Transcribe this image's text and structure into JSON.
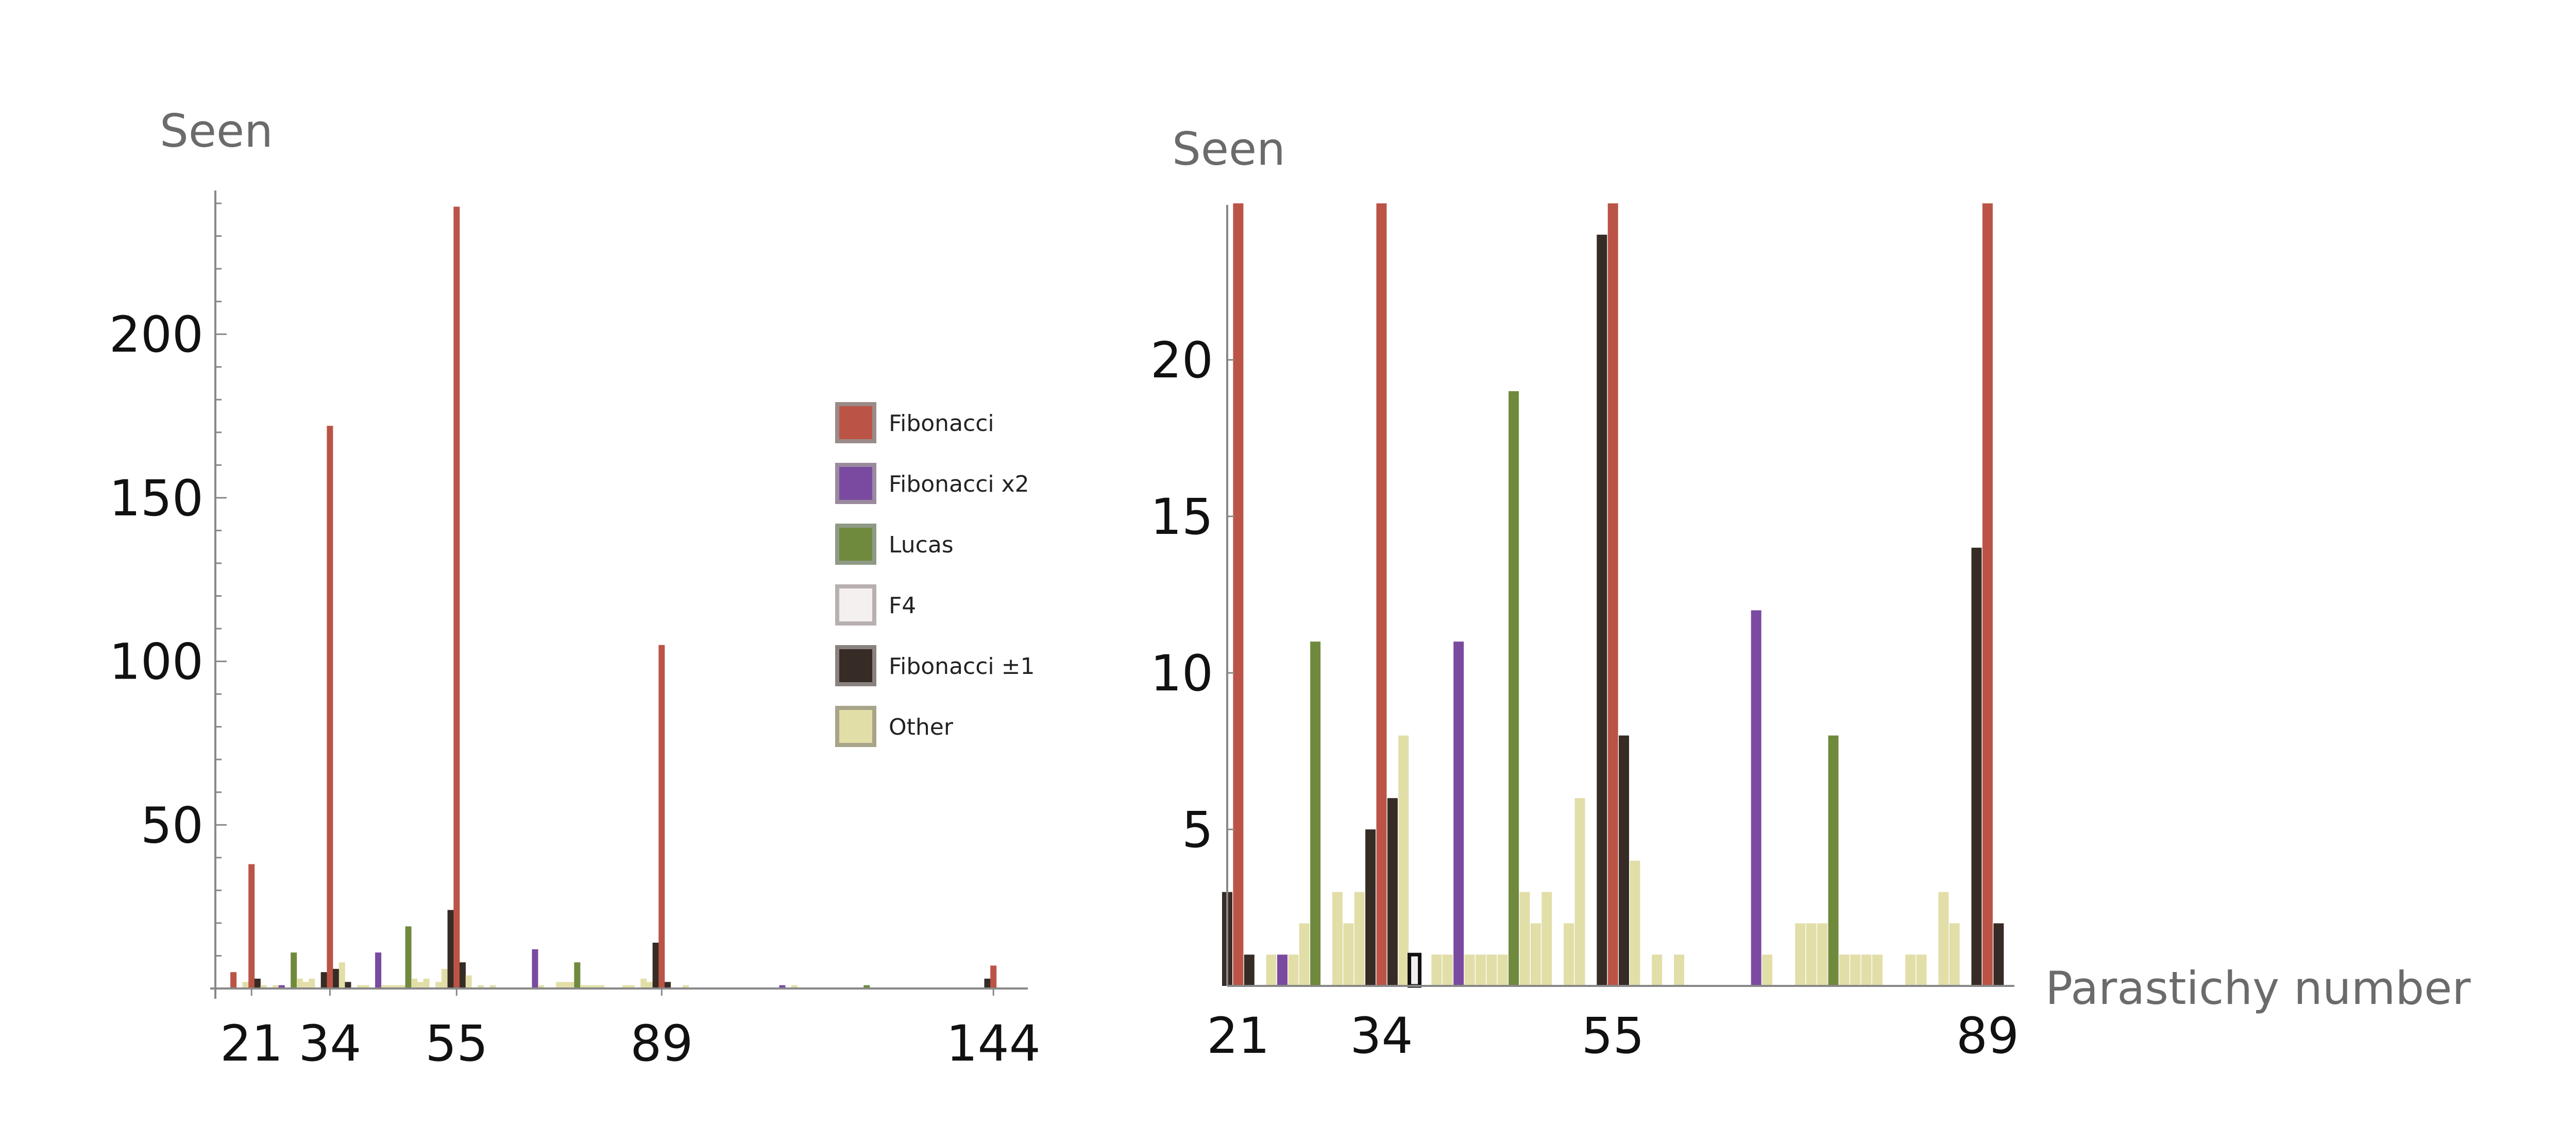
{
  "legend": [
    {
      "key": "fib",
      "label": "Fibonacci",
      "color": "#bb5446",
      "border": "#9a8a88"
    },
    {
      "key": "fib2",
      "label": "Fibonacci x2",
      "color": "#7a4aa0",
      "border": "#9a8a9e"
    },
    {
      "key": "lucas",
      "label": "Lucas",
      "color": "#6f8a3c",
      "border": "#8f9a86"
    },
    {
      "key": "f4",
      "label": "F4",
      "color": "#f4f0f0",
      "border": "#b8b0b0"
    },
    {
      "key": "fibpm1",
      "label": "Fibonacci ±1",
      "color": "#362b25",
      "border": "#8a8280"
    },
    {
      "key": "other",
      "label": "Other",
      "color": "#e2dea8",
      "border": "#a8a48a"
    }
  ],
  "chart_data": [
    {
      "type": "bar",
      "ylabel": "Seen",
      "xlabel": "",
      "xlim": [
        15,
        148
      ],
      "ylim": [
        0,
        240
      ],
      "yticks": [
        50,
        100,
        150,
        200
      ],
      "xticks": [
        21,
        34,
        55,
        89,
        144
      ],
      "bars": [
        {
          "x": 18,
          "y": 5,
          "cat": "fib"
        },
        {
          "x": 20,
          "y": 2,
          "cat": "other"
        },
        {
          "x": 21,
          "y": 38,
          "cat": "fib"
        },
        {
          "x": 22,
          "y": 3,
          "cat": "fibpm1"
        },
        {
          "x": 23,
          "y": 1,
          "cat": "other"
        },
        {
          "x": 25,
          "y": 1,
          "cat": "other"
        },
        {
          "x": 26,
          "y": 1,
          "cat": "fib2"
        },
        {
          "x": 28,
          "y": 11,
          "cat": "lucas"
        },
        {
          "x": 29,
          "y": 3,
          "cat": "other"
        },
        {
          "x": 30,
          "y": 2,
          "cat": "other"
        },
        {
          "x": 31,
          "y": 3,
          "cat": "other"
        },
        {
          "x": 33,
          "y": 5,
          "cat": "fibpm1"
        },
        {
          "x": 34,
          "y": 172,
          "cat": "fib"
        },
        {
          "x": 35,
          "y": 6,
          "cat": "fibpm1"
        },
        {
          "x": 36,
          "y": 8,
          "cat": "other"
        },
        {
          "x": 37,
          "y": 2,
          "cat": "fibpm1"
        },
        {
          "x": 39,
          "y": 1,
          "cat": "other"
        },
        {
          "x": 40,
          "y": 1,
          "cat": "other"
        },
        {
          "x": 42,
          "y": 11,
          "cat": "fib2"
        },
        {
          "x": 43,
          "y": 1,
          "cat": "other"
        },
        {
          "x": 44,
          "y": 1,
          "cat": "other"
        },
        {
          "x": 45,
          "y": 1,
          "cat": "other"
        },
        {
          "x": 46,
          "y": 1,
          "cat": "other"
        },
        {
          "x": 47,
          "y": 19,
          "cat": "lucas"
        },
        {
          "x": 48,
          "y": 3,
          "cat": "other"
        },
        {
          "x": 49,
          "y": 2,
          "cat": "other"
        },
        {
          "x": 50,
          "y": 3,
          "cat": "other"
        },
        {
          "x": 52,
          "y": 2,
          "cat": "other"
        },
        {
          "x": 53,
          "y": 6,
          "cat": "other"
        },
        {
          "x": 54,
          "y": 24,
          "cat": "fibpm1"
        },
        {
          "x": 55,
          "y": 239,
          "cat": "fib"
        },
        {
          "x": 56,
          "y": 8,
          "cat": "fibpm1"
        },
        {
          "x": 57,
          "y": 4,
          "cat": "other"
        },
        {
          "x": 59,
          "y": 1,
          "cat": "other"
        },
        {
          "x": 61,
          "y": 1,
          "cat": "other"
        },
        {
          "x": 68,
          "y": 12,
          "cat": "fib2"
        },
        {
          "x": 69,
          "y": 1,
          "cat": "other"
        },
        {
          "x": 72,
          "y": 2,
          "cat": "other"
        },
        {
          "x": 73,
          "y": 2,
          "cat": "other"
        },
        {
          "x": 74,
          "y": 2,
          "cat": "other"
        },
        {
          "x": 75,
          "y": 8,
          "cat": "lucas"
        },
        {
          "x": 76,
          "y": 1,
          "cat": "other"
        },
        {
          "x": 77,
          "y": 1,
          "cat": "other"
        },
        {
          "x": 78,
          "y": 1,
          "cat": "other"
        },
        {
          "x": 79,
          "y": 1,
          "cat": "other"
        },
        {
          "x": 83,
          "y": 1,
          "cat": "other"
        },
        {
          "x": 84,
          "y": 1,
          "cat": "other"
        },
        {
          "x": 86,
          "y": 3,
          "cat": "other"
        },
        {
          "x": 87,
          "y": 2,
          "cat": "other"
        },
        {
          "x": 88,
          "y": 14,
          "cat": "fibpm1"
        },
        {
          "x": 89,
          "y": 105,
          "cat": "fib"
        },
        {
          "x": 90,
          "y": 2,
          "cat": "fibpm1"
        },
        {
          "x": 93,
          "y": 1,
          "cat": "other"
        },
        {
          "x": 109,
          "y": 1,
          "cat": "fib2"
        },
        {
          "x": 111,
          "y": 1,
          "cat": "other"
        },
        {
          "x": 123,
          "y": 1,
          "cat": "lucas"
        },
        {
          "x": 143,
          "y": 3,
          "cat": "fibpm1"
        },
        {
          "x": 144,
          "y": 7,
          "cat": "fib"
        }
      ]
    },
    {
      "type": "bar",
      "ylabel": "Seen",
      "xlabel": "Parastichy number",
      "xlim": [
        20,
        90.5
      ],
      "ylim": [
        0,
        25
      ],
      "yticks": [
        5,
        10,
        15,
        20
      ],
      "xticks": [
        21,
        34,
        55,
        89
      ],
      "bars": [
        {
          "x": 20,
          "y": 3,
          "cat": "fibpm1"
        },
        {
          "x": 21,
          "y": 25,
          "cat": "fib"
        },
        {
          "x": 22,
          "y": 1,
          "cat": "fibpm1"
        },
        {
          "x": 24,
          "y": 1,
          "cat": "other"
        },
        {
          "x": 25,
          "y": 1,
          "cat": "fib2"
        },
        {
          "x": 26,
          "y": 1,
          "cat": "other"
        },
        {
          "x": 27,
          "y": 2,
          "cat": "other"
        },
        {
          "x": 28,
          "y": 11,
          "cat": "lucas"
        },
        {
          "x": 30,
          "y": 3,
          "cat": "other"
        },
        {
          "x": 31,
          "y": 2,
          "cat": "other"
        },
        {
          "x": 32,
          "y": 3,
          "cat": "other"
        },
        {
          "x": 33,
          "y": 5,
          "cat": "fibpm1"
        },
        {
          "x": 34,
          "y": 25,
          "cat": "fib"
        },
        {
          "x": 35,
          "y": 6,
          "cat": "fibpm1"
        },
        {
          "x": 36,
          "y": 8,
          "cat": "other"
        },
        {
          "x": 37,
          "y": 1,
          "cat": "f4"
        },
        {
          "x": 39,
          "y": 1,
          "cat": "other"
        },
        {
          "x": 40,
          "y": 1,
          "cat": "other"
        },
        {
          "x": 41,
          "y": 11,
          "cat": "fib2"
        },
        {
          "x": 42,
          "y": 1,
          "cat": "other"
        },
        {
          "x": 43,
          "y": 1,
          "cat": "other"
        },
        {
          "x": 44,
          "y": 1,
          "cat": "other"
        },
        {
          "x": 45,
          "y": 1,
          "cat": "other"
        },
        {
          "x": 46,
          "y": 19,
          "cat": "lucas"
        },
        {
          "x": 47,
          "y": 3,
          "cat": "other"
        },
        {
          "x": 48,
          "y": 2,
          "cat": "other"
        },
        {
          "x": 49,
          "y": 3,
          "cat": "other"
        },
        {
          "x": 51,
          "y": 2,
          "cat": "other"
        },
        {
          "x": 52,
          "y": 6,
          "cat": "other"
        },
        {
          "x": 54,
          "y": 24,
          "cat": "fibpm1"
        },
        {
          "x": 55,
          "y": 25,
          "cat": "fib"
        },
        {
          "x": 56,
          "y": 8,
          "cat": "fibpm1"
        },
        {
          "x": 57,
          "y": 4,
          "cat": "other"
        },
        {
          "x": 59,
          "y": 1,
          "cat": "other"
        },
        {
          "x": 61,
          "y": 1,
          "cat": "other"
        },
        {
          "x": 68,
          "y": 12,
          "cat": "fib2"
        },
        {
          "x": 69,
          "y": 1,
          "cat": "other"
        },
        {
          "x": 72,
          "y": 2,
          "cat": "other"
        },
        {
          "x": 73,
          "y": 2,
          "cat": "other"
        },
        {
          "x": 74,
          "y": 2,
          "cat": "other"
        },
        {
          "x": 75,
          "y": 8,
          "cat": "lucas"
        },
        {
          "x": 76,
          "y": 1,
          "cat": "other"
        },
        {
          "x": 77,
          "y": 1,
          "cat": "other"
        },
        {
          "x": 78,
          "y": 1,
          "cat": "other"
        },
        {
          "x": 79,
          "y": 1,
          "cat": "other"
        },
        {
          "x": 82,
          "y": 1,
          "cat": "other"
        },
        {
          "x": 83,
          "y": 1,
          "cat": "other"
        },
        {
          "x": 85,
          "y": 3,
          "cat": "other"
        },
        {
          "x": 86,
          "y": 2,
          "cat": "other"
        },
        {
          "x": 88,
          "y": 14,
          "cat": "fibpm1"
        },
        {
          "x": 89,
          "y": 25,
          "cat": "fib"
        },
        {
          "x": 90,
          "y": 2,
          "cat": "fibpm1"
        }
      ]
    }
  ]
}
